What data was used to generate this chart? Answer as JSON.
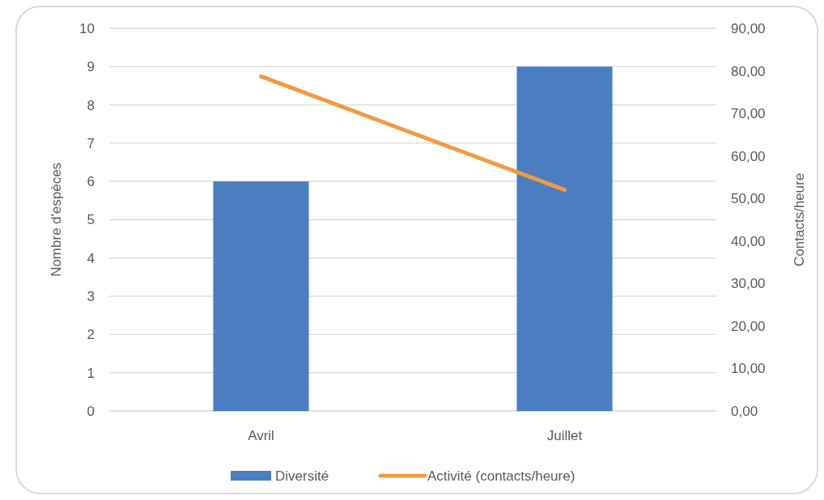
{
  "chart_data": {
    "type": "bar",
    "ylabel": "Nombre d'espèces",
    "y2label": "Contacts/heure",
    "categories": [
      "Avril",
      "Juillet"
    ],
    "series": [
      {
        "name": "Diversité",
        "color": "#4a7ec1",
        "values": [
          6,
          9
        ]
      },
      {
        "name": "Activité (contacts/heure)",
        "type": "line",
        "color": "#f39a45",
        "axis": "y2",
        "values": [
          78.7,
          52
        ]
      }
    ],
    "ylim": [
      0,
      10
    ],
    "yticks": [
      0,
      1,
      2,
      3,
      4,
      5,
      6,
      7,
      8,
      9,
      10
    ],
    "y2lim": [
      0,
      90
    ],
    "y2ticks": [
      {
        "value": 0,
        "label": "0,00"
      },
      {
        "value": 10,
        "label": "10,00"
      },
      {
        "value": 20,
        "label": "20,00"
      },
      {
        "value": 30,
        "label": "30,00"
      },
      {
        "value": 40,
        "label": "40,00"
      },
      {
        "value": 50,
        "label": "50,00"
      },
      {
        "value": 60,
        "label": "60,00"
      },
      {
        "value": 70,
        "label": "70,00"
      },
      {
        "value": 80,
        "label": "80,00"
      },
      {
        "value": 90,
        "label": "90,00"
      }
    ],
    "grid": "y",
    "legend": "bottom",
    "marker": "none",
    "line_style": "solid"
  }
}
